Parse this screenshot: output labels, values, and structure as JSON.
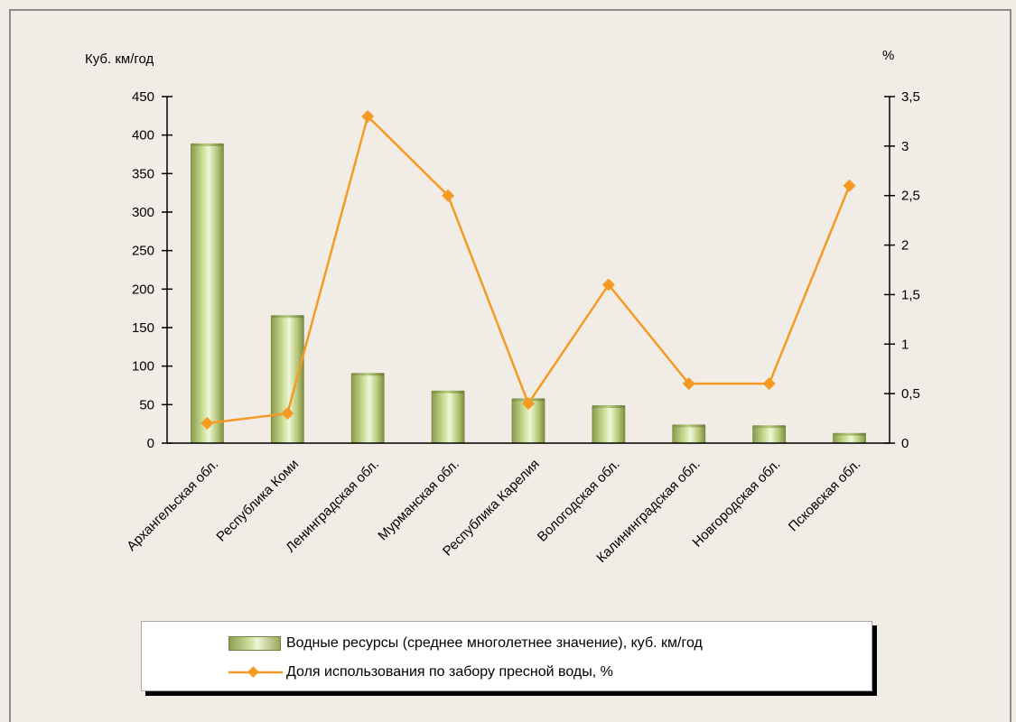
{
  "chart_data": {
    "type": "bar",
    "categories": [
      "Архангельская обл.",
      "Республика Коми",
      "Ленинградская обл.",
      "Мурманская обл.",
      "Республика Карелия",
      "Вологодская обл.",
      "Калининградская обл.",
      "Новгородская обл.",
      "Псковская обл."
    ],
    "series": [
      {
        "name": "Водные ресурсы (среднее многолетнее значение),  куб. км/год",
        "type": "bar",
        "axis": "left",
        "color": "#a6b96a",
        "values": [
          388,
          165,
          90,
          67,
          57,
          48,
          23,
          22,
          12
        ]
      },
      {
        "name": "Доля использования по  забору пресной воды, %",
        "type": "line",
        "axis": "right",
        "color": "#f59a23",
        "values": [
          0.2,
          0.3,
          3.3,
          2.5,
          0.4,
          1.6,
          0.6,
          0.6,
          2.6
        ]
      }
    ],
    "left_axis": {
      "label": "Куб. км/год",
      "ylim": [
        0,
        450
      ],
      "ticks": [
        0,
        50,
        100,
        150,
        200,
        250,
        300,
        350,
        400,
        450
      ],
      "tick_labels": [
        "0",
        "50",
        "100",
        "150",
        "200",
        "250",
        "300",
        "350",
        "400",
        "450"
      ]
    },
    "right_axis": {
      "label": "%",
      "ylim": [
        0,
        3.5
      ],
      "ticks": [
        0,
        0.5,
        1,
        1.5,
        2,
        2.5,
        3,
        3.5
      ],
      "tick_labels": [
        "0",
        "0,5",
        "1",
        "1,5",
        "2",
        "2,5",
        "3",
        "3,5"
      ]
    },
    "grid": false,
    "legend_position": "bottom"
  },
  "colors": {
    "background": "#f1ede6",
    "bar": "#a6b96a",
    "line": "#f59a23"
  }
}
